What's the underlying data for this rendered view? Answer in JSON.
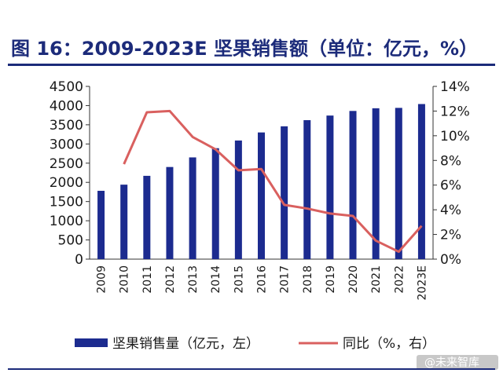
{
  "chart_data": {
    "type": "bar+line",
    "title": "图 16：2009-2023E 坚果销售额（单位：亿元，%）",
    "categories": [
      "2009",
      "2010",
      "2011",
      "2012",
      "2013",
      "2014",
      "2015",
      "2016",
      "2017",
      "2018",
      "2019",
      "2020",
      "2021",
      "2022",
      "2023E"
    ],
    "series": [
      {
        "name": "坚果销售量（亿元，左）",
        "type": "bar",
        "axis": "left",
        "color": "#1c2b8f",
        "values": [
          1780,
          1940,
          2170,
          2400,
          2650,
          2890,
          3090,
          3300,
          3460,
          3620,
          3740,
          3860,
          3930,
          3940,
          4040
        ]
      },
      {
        "name": "同比（%，右）",
        "type": "line",
        "axis": "right",
        "color": "#d9605f",
        "values": [
          null,
          7.7,
          11.9,
          12.0,
          9.9,
          8.9,
          7.2,
          7.3,
          4.4,
          4.1,
          3.7,
          3.5,
          1.5,
          0.6,
          2.7
        ]
      }
    ],
    "y_left": {
      "min": 0,
      "max": 4500,
      "step": 500,
      "ticks": [
        "0",
        "500",
        "1000",
        "1500",
        "2000",
        "2500",
        "3000",
        "3500",
        "4000",
        "4500"
      ]
    },
    "y_right": {
      "min": 0,
      "max": 14,
      "step": 2,
      "ticks": [
        "0%",
        "2%",
        "4%",
        "6%",
        "8%",
        "10%",
        "12%",
        "14%"
      ]
    },
    "legend": [
      "坚果销售量（亿元，左）",
      "同比（%，右）"
    ],
    "watermark": "@未来智库"
  }
}
